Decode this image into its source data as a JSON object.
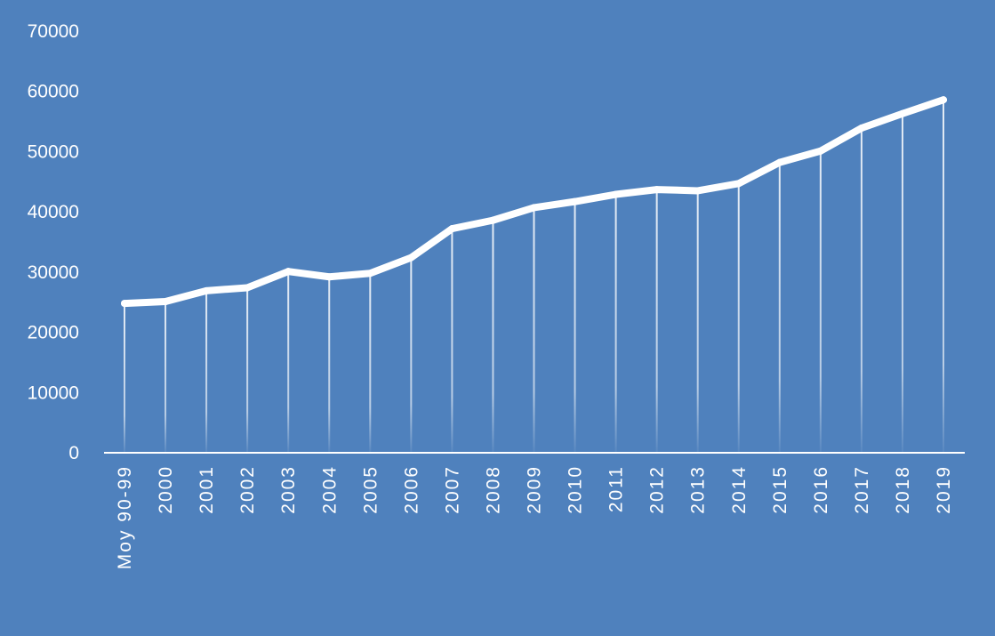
{
  "chart_data": {
    "type": "line",
    "title": "",
    "xlabel": "",
    "ylabel": "",
    "categories": [
      "Moy 90-99",
      "2000",
      "2001",
      "2002",
      "2003",
      "2004",
      "2005",
      "2006",
      "2007",
      "2008",
      "2009",
      "2010",
      "2011",
      "2012",
      "2013",
      "2014",
      "2015",
      "2016",
      "2017",
      "2018",
      "2019"
    ],
    "series": [
      {
        "values": [
          24800,
          25100,
          26900,
          27400,
          30100,
          29200,
          29800,
          32400,
          37200,
          38600,
          40700,
          41700,
          42900,
          43700,
          43500,
          44700,
          48200,
          50100,
          53900,
          56300,
          58600
        ]
      }
    ],
    "ylim": [
      0,
      70000
    ],
    "yticks": [
      0,
      10000,
      20000,
      30000,
      40000,
      50000,
      60000,
      70000
    ],
    "grid": false,
    "drop_lines": true,
    "legend": "none",
    "colors": {
      "background": "#4f81bd",
      "line": "#ffffff",
      "drop_line": "#ffffff",
      "axis": "#ffffff",
      "text": "#ffffff"
    }
  }
}
